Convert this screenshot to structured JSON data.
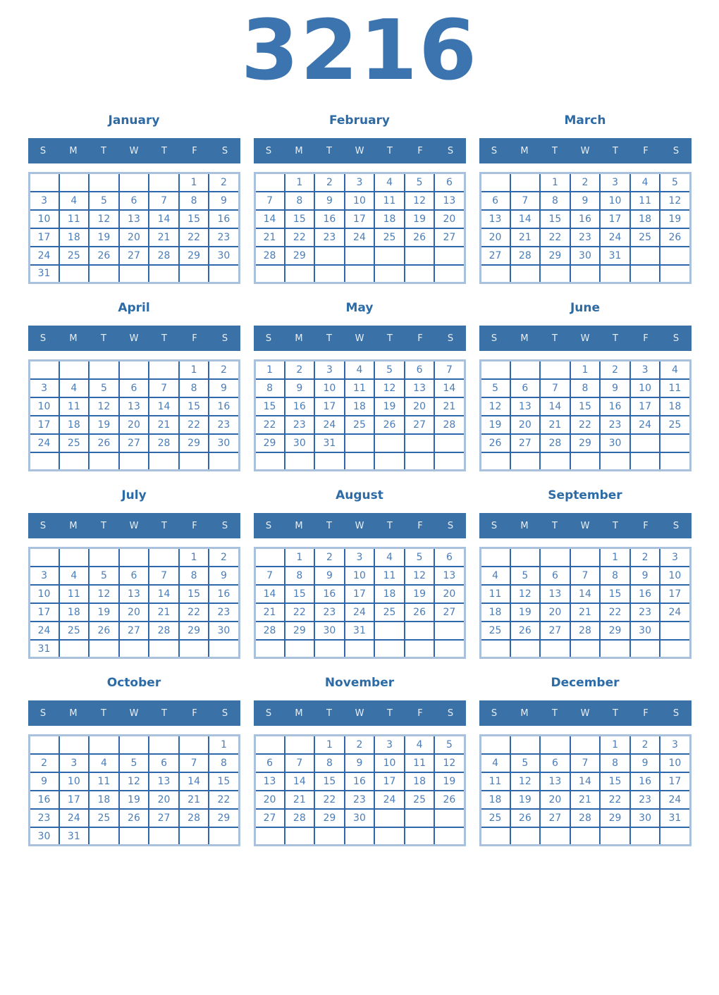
{
  "page": {
    "year_title": "3216"
  },
  "colors": {
    "title": "#3b74ae",
    "month_name": "#2d6ba6",
    "header_bg": "#3a72a8",
    "header_text": "#e8eef5",
    "cell_border": "#2f67ac",
    "outer_border": "#a9c1dc",
    "day_text": "#4a7db8",
    "page_bg": "#ffffff"
  },
  "weekdays": [
    "S",
    "M",
    "T",
    "W",
    "T",
    "F",
    "S"
  ],
  "months": [
    {
      "name": "January",
      "weeks": [
        [
          "",
          "",
          "",
          "",
          "",
          "1",
          "2"
        ],
        [
          "3",
          "4",
          "5",
          "6",
          "7",
          "8",
          "9"
        ],
        [
          "10",
          "11",
          "12",
          "13",
          "14",
          "15",
          "16"
        ],
        [
          "17",
          "18",
          "19",
          "20",
          "21",
          "22",
          "23"
        ],
        [
          "24",
          "25",
          "26",
          "27",
          "28",
          "29",
          "30"
        ],
        [
          "31",
          "",
          "",
          "",
          "",
          "",
          ""
        ]
      ]
    },
    {
      "name": "February",
      "weeks": [
        [
          "",
          "1",
          "2",
          "3",
          "4",
          "5",
          "6"
        ],
        [
          "7",
          "8",
          "9",
          "10",
          "11",
          "12",
          "13"
        ],
        [
          "14",
          "15",
          "16",
          "17",
          "18",
          "19",
          "20"
        ],
        [
          "21",
          "22",
          "23",
          "24",
          "25",
          "26",
          "27"
        ],
        [
          "28",
          "29",
          "",
          "",
          "",
          "",
          ""
        ],
        [
          "",
          "",
          "",
          "",
          "",
          "",
          ""
        ]
      ]
    },
    {
      "name": "March",
      "weeks": [
        [
          "",
          "",
          "1",
          "2",
          "3",
          "4",
          "5"
        ],
        [
          "6",
          "7",
          "8",
          "9",
          "10",
          "11",
          "12"
        ],
        [
          "13",
          "14",
          "15",
          "16",
          "17",
          "18",
          "19"
        ],
        [
          "20",
          "21",
          "22",
          "23",
          "24",
          "25",
          "26"
        ],
        [
          "27",
          "28",
          "29",
          "30",
          "31",
          "",
          ""
        ],
        [
          "",
          "",
          "",
          "",
          "",
          "",
          ""
        ]
      ]
    },
    {
      "name": "April",
      "weeks": [
        [
          "",
          "",
          "",
          "",
          "",
          "1",
          "2"
        ],
        [
          "3",
          "4",
          "5",
          "6",
          "7",
          "8",
          "9"
        ],
        [
          "10",
          "11",
          "12",
          "13",
          "14",
          "15",
          "16"
        ],
        [
          "17",
          "18",
          "19",
          "20",
          "21",
          "22",
          "23"
        ],
        [
          "24",
          "25",
          "26",
          "27",
          "28",
          "29",
          "30"
        ],
        [
          "",
          "",
          "",
          "",
          "",
          "",
          ""
        ]
      ]
    },
    {
      "name": "May",
      "weeks": [
        [
          "1",
          "2",
          "3",
          "4",
          "5",
          "6",
          "7"
        ],
        [
          "8",
          "9",
          "10",
          "11",
          "12",
          "13",
          "14"
        ],
        [
          "15",
          "16",
          "17",
          "18",
          "19",
          "20",
          "21"
        ],
        [
          "22",
          "23",
          "24",
          "25",
          "26",
          "27",
          "28"
        ],
        [
          "29",
          "30",
          "31",
          "",
          "",
          "",
          ""
        ],
        [
          "",
          "",
          "",
          "",
          "",
          "",
          ""
        ]
      ]
    },
    {
      "name": "June",
      "weeks": [
        [
          "",
          "",
          "",
          "1",
          "2",
          "3",
          "4"
        ],
        [
          "5",
          "6",
          "7",
          "8",
          "9",
          "10",
          "11"
        ],
        [
          "12",
          "13",
          "14",
          "15",
          "16",
          "17",
          "18"
        ],
        [
          "19",
          "20",
          "21",
          "22",
          "23",
          "24",
          "25"
        ],
        [
          "26",
          "27",
          "28",
          "29",
          "30",
          "",
          ""
        ],
        [
          "",
          "",
          "",
          "",
          "",
          "",
          ""
        ]
      ]
    },
    {
      "name": "July",
      "weeks": [
        [
          "",
          "",
          "",
          "",
          "",
          "1",
          "2"
        ],
        [
          "3",
          "4",
          "5",
          "6",
          "7",
          "8",
          "9"
        ],
        [
          "10",
          "11",
          "12",
          "13",
          "14",
          "15",
          "16"
        ],
        [
          "17",
          "18",
          "19",
          "20",
          "21",
          "22",
          "23"
        ],
        [
          "24",
          "25",
          "26",
          "27",
          "28",
          "29",
          "30"
        ],
        [
          "31",
          "",
          "",
          "",
          "",
          "",
          ""
        ]
      ]
    },
    {
      "name": "August",
      "weeks": [
        [
          "",
          "1",
          "2",
          "3",
          "4",
          "5",
          "6"
        ],
        [
          "7",
          "8",
          "9",
          "10",
          "11",
          "12",
          "13"
        ],
        [
          "14",
          "15",
          "16",
          "17",
          "18",
          "19",
          "20"
        ],
        [
          "21",
          "22",
          "23",
          "24",
          "25",
          "26",
          "27"
        ],
        [
          "28",
          "29",
          "30",
          "31",
          "",
          "",
          ""
        ],
        [
          "",
          "",
          "",
          "",
          "",
          "",
          ""
        ]
      ]
    },
    {
      "name": "September",
      "weeks": [
        [
          "",
          "",
          "",
          "",
          "1",
          "2",
          "3"
        ],
        [
          "4",
          "5",
          "6",
          "7",
          "8",
          "9",
          "10"
        ],
        [
          "11",
          "12",
          "13",
          "14",
          "15",
          "16",
          "17"
        ],
        [
          "18",
          "19",
          "20",
          "21",
          "22",
          "23",
          "24"
        ],
        [
          "25",
          "26",
          "27",
          "28",
          "29",
          "30",
          ""
        ],
        [
          "",
          "",
          "",
          "",
          "",
          "",
          ""
        ]
      ]
    },
    {
      "name": "October",
      "weeks": [
        [
          "",
          "",
          "",
          "",
          "",
          "",
          "1"
        ],
        [
          "2",
          "3",
          "4",
          "5",
          "6",
          "7",
          "8"
        ],
        [
          "9",
          "10",
          "11",
          "12",
          "13",
          "14",
          "15"
        ],
        [
          "16",
          "17",
          "18",
          "19",
          "20",
          "21",
          "22"
        ],
        [
          "23",
          "24",
          "25",
          "26",
          "27",
          "28",
          "29"
        ],
        [
          "30",
          "31",
          "",
          "",
          "",
          "",
          ""
        ]
      ]
    },
    {
      "name": "November",
      "weeks": [
        [
          "",
          "",
          "1",
          "2",
          "3",
          "4",
          "5"
        ],
        [
          "6",
          "7",
          "8",
          "9",
          "10",
          "11",
          "12"
        ],
        [
          "13",
          "14",
          "15",
          "16",
          "17",
          "18",
          "19"
        ],
        [
          "20",
          "21",
          "22",
          "23",
          "24",
          "25",
          "26"
        ],
        [
          "27",
          "28",
          "29",
          "30",
          "",
          "",
          ""
        ],
        [
          "",
          "",
          "",
          "",
          "",
          "",
          ""
        ]
      ]
    },
    {
      "name": "December",
      "weeks": [
        [
          "",
          "",
          "",
          "",
          "1",
          "2",
          "3"
        ],
        [
          "4",
          "5",
          "6",
          "7",
          "8",
          "9",
          "10"
        ],
        [
          "11",
          "12",
          "13",
          "14",
          "15",
          "16",
          "17"
        ],
        [
          "18",
          "19",
          "20",
          "21",
          "22",
          "23",
          "24"
        ],
        [
          "25",
          "26",
          "27",
          "28",
          "29",
          "30",
          "31"
        ],
        [
          "",
          "",
          "",
          "",
          "",
          "",
          ""
        ]
      ]
    }
  ]
}
